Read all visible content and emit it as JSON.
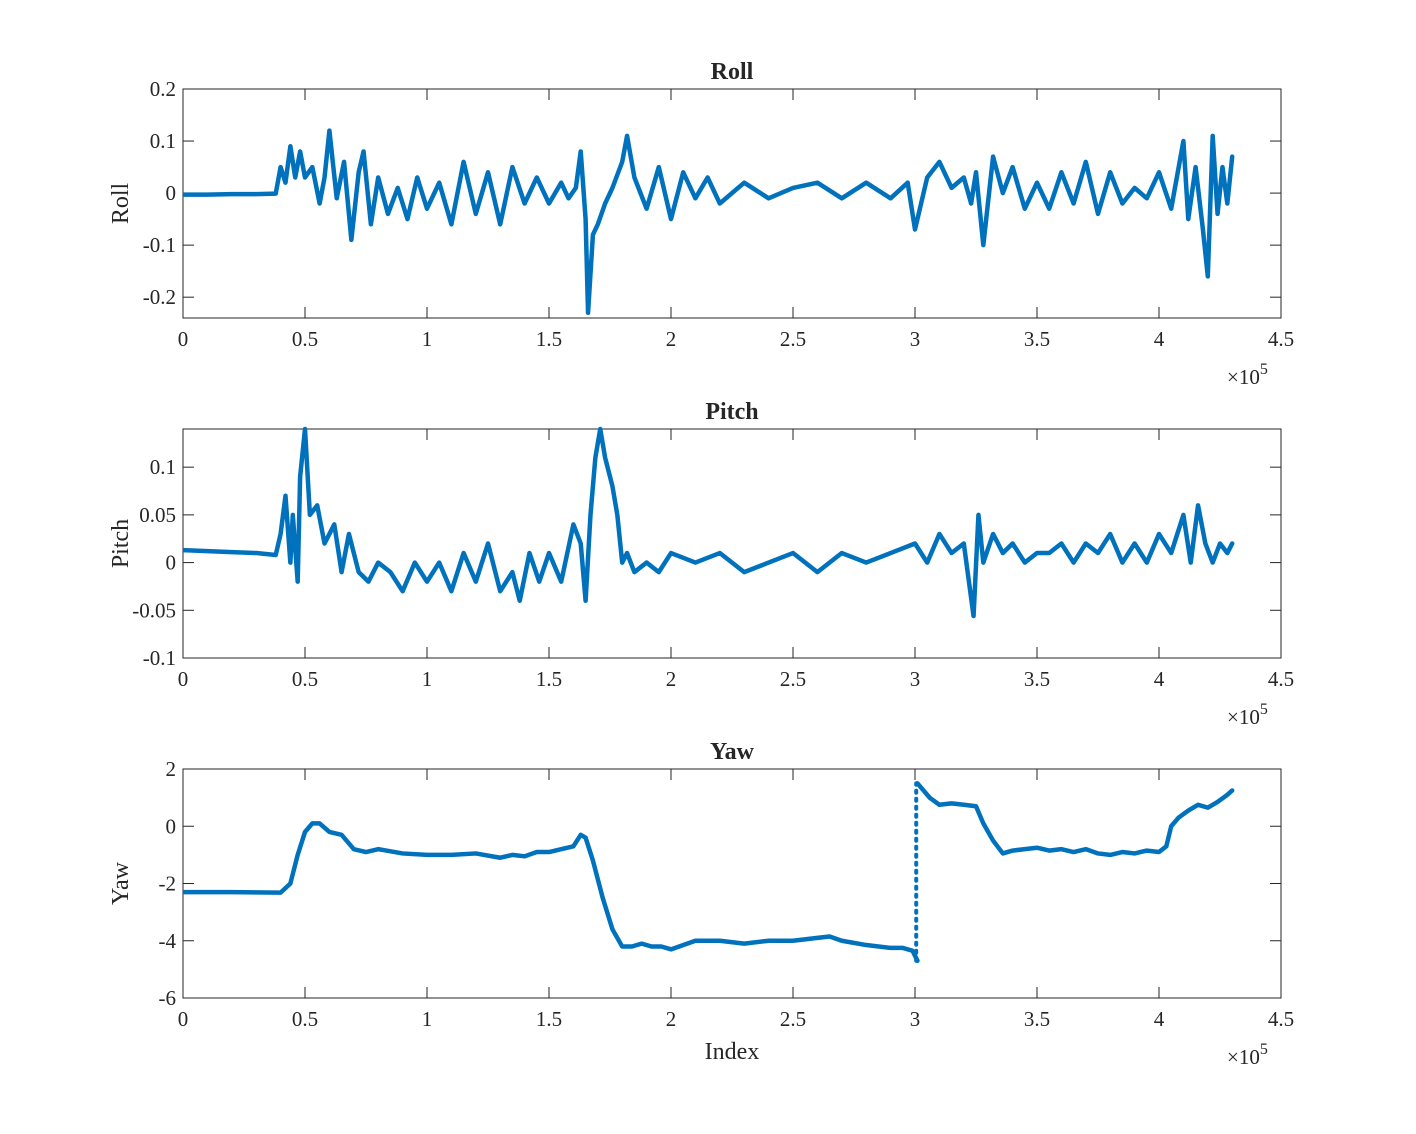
{
  "chart_data": [
    {
      "type": "line",
      "title": "Roll",
      "xlabel": "",
      "ylabel": "Roll",
      "xlim": [
        0,
        450000
      ],
      "ylim": [
        -0.24,
        0.2
      ],
      "x_ticks": [
        0,
        50000,
        100000,
        150000,
        200000,
        250000,
        300000,
        350000,
        400000,
        450000
      ],
      "x_tick_labels": [
        "0",
        "0.5",
        "1",
        "1.5",
        "2",
        "2.5",
        "3",
        "3.5",
        "4",
        "4.5"
      ],
      "x_exponent_label": "×10",
      "x_exponent": "5",
      "y_ticks": [
        -0.2,
        -0.1,
        0,
        0.1,
        0.2
      ],
      "y_tick_labels": [
        "-0.2",
        "-0.1",
        "0",
        "0.1",
        "0.2"
      ],
      "color": "#0072BD",
      "series": [
        {
          "x": [
            0,
            10000,
            20000,
            30000,
            38000,
            40000,
            42000,
            44000,
            46000,
            48000,
            50000,
            53000,
            56000,
            58000,
            60000,
            63000,
            66000,
            69000,
            72000,
            74000,
            77000,
            80000,
            84000,
            88000,
            92000,
            96000,
            100000,
            105000,
            110000,
            115000,
            120000,
            125000,
            130000,
            135000,
            140000,
            145000,
            150000,
            155000,
            158000,
            161000,
            163000,
            165000,
            166000,
            168000,
            170000,
            173000,
            176000,
            180000,
            182000,
            185000,
            190000,
            195000,
            200000,
            205000,
            210000,
            215000,
            220000,
            230000,
            240000,
            250000,
            260000,
            270000,
            280000,
            290000,
            297000,
            300000,
            305000,
            310000,
            315000,
            320000,
            323000,
            325000,
            328000,
            332000,
            336000,
            340000,
            345000,
            350000,
            355000,
            360000,
            365000,
            370000,
            375000,
            380000,
            385000,
            390000,
            395000,
            400000,
            405000,
            410000,
            412000,
            415000,
            418000,
            420000,
            422000,
            424000,
            426000,
            428000,
            430000
          ],
          "y": [
            -0.003,
            -0.003,
            -0.002,
            -0.002,
            -0.001,
            0.05,
            0.02,
            0.09,
            0.03,
            0.08,
            0.03,
            0.05,
            -0.02,
            0.03,
            0.12,
            -0.01,
            0.06,
            -0.09,
            0.04,
            0.08,
            -0.06,
            0.03,
            -0.04,
            0.01,
            -0.05,
            0.03,
            -0.03,
            0.02,
            -0.06,
            0.06,
            -0.04,
            0.04,
            -0.06,
            0.05,
            -0.02,
            0.03,
            -0.02,
            0.02,
            -0.01,
            0.01,
            0.08,
            -0.05,
            -0.23,
            -0.08,
            -0.06,
            -0.02,
            0.01,
            0.06,
            0.11,
            0.03,
            -0.03,
            0.05,
            -0.05,
            0.04,
            -0.01,
            0.03,
            -0.02,
            0.02,
            -0.01,
            0.01,
            0.02,
            -0.01,
            0.02,
            -0.01,
            0.02,
            -0.07,
            0.03,
            0.06,
            0.01,
            0.03,
            -0.02,
            0.04,
            -0.1,
            0.07,
            0.0,
            0.05,
            -0.03,
            0.02,
            -0.03,
            0.04,
            -0.02,
            0.06,
            -0.04,
            0.04,
            -0.02,
            0.01,
            -0.01,
            0.04,
            -0.03,
            0.1,
            -0.05,
            0.05,
            -0.07,
            -0.16,
            0.11,
            -0.04,
            0.05,
            -0.02,
            0.07
          ]
        }
      ]
    },
    {
      "type": "line",
      "title": "Pitch",
      "xlabel": "",
      "ylabel": "Pitch",
      "xlim": [
        0,
        450000
      ],
      "ylim": [
        -0.1,
        0.14
      ],
      "x_ticks": [
        0,
        50000,
        100000,
        150000,
        200000,
        250000,
        300000,
        350000,
        400000,
        450000
      ],
      "x_tick_labels": [
        "0",
        "0.5",
        "1",
        "1.5",
        "2",
        "2.5",
        "3",
        "3.5",
        "4",
        "4.5"
      ],
      "x_exponent_label": "×10",
      "x_exponent": "5",
      "y_ticks": [
        -0.1,
        -0.05,
        0,
        0.05,
        0.1
      ],
      "y_tick_labels": [
        "-0.1",
        "-0.05",
        "0",
        "0.05",
        "0.1"
      ],
      "color": "#0072BD",
      "series": [
        {
          "x": [
            0,
            10000,
            20000,
            30000,
            38000,
            40000,
            42000,
            44000,
            45000,
            47000,
            48000,
            50000,
            52000,
            55000,
            58000,
            62000,
            65000,
            68000,
            72000,
            76000,
            80000,
            85000,
            90000,
            95000,
            100000,
            105000,
            110000,
            115000,
            120000,
            125000,
            130000,
            135000,
            138000,
            142000,
            146000,
            150000,
            155000,
            160000,
            163000,
            165000,
            167000,
            169000,
            171000,
            173000,
            176000,
            178000,
            180000,
            182000,
            185000,
            190000,
            195000,
            200000,
            210000,
            220000,
            230000,
            240000,
            250000,
            260000,
            270000,
            280000,
            290000,
            300000,
            305000,
            310000,
            315000,
            320000,
            324000,
            326000,
            328000,
            332000,
            336000,
            340000,
            345000,
            350000,
            355000,
            360000,
            365000,
            370000,
            375000,
            380000,
            385000,
            390000,
            395000,
            400000,
            405000,
            410000,
            413000,
            416000,
            419000,
            422000,
            425000,
            428000,
            430000
          ],
          "y": [
            0.013,
            0.012,
            0.011,
            0.01,
            0.008,
            0.03,
            0.07,
            0.0,
            0.05,
            -0.02,
            0.09,
            0.14,
            0.05,
            0.06,
            0.02,
            0.04,
            -0.01,
            0.03,
            -0.01,
            -0.02,
            0.0,
            -0.01,
            -0.03,
            0.0,
            -0.02,
            0.0,
            -0.03,
            0.01,
            -0.02,
            0.02,
            -0.03,
            -0.01,
            -0.04,
            0.01,
            -0.02,
            0.01,
            -0.02,
            0.04,
            0.02,
            -0.04,
            0.05,
            0.11,
            0.14,
            0.11,
            0.08,
            0.05,
            0.0,
            0.01,
            -0.01,
            0.0,
            -0.01,
            0.01,
            0.0,
            0.01,
            -0.01,
            0.0,
            0.01,
            -0.01,
            0.01,
            0.0,
            0.01,
            0.02,
            0.0,
            0.03,
            0.01,
            0.02,
            -0.056,
            0.05,
            0.0,
            0.03,
            0.01,
            0.02,
            0.0,
            0.01,
            0.01,
            0.02,
            0.0,
            0.02,
            0.01,
            0.03,
            0.0,
            0.02,
            0.0,
            0.03,
            0.01,
            0.05,
            0.0,
            0.06,
            0.02,
            0.0,
            0.02,
            0.01,
            0.02
          ]
        }
      ]
    },
    {
      "type": "line",
      "title": "Yaw",
      "xlabel": "Index",
      "ylabel": "Yaw",
      "xlim": [
        0,
        450000
      ],
      "ylim": [
        -6,
        2
      ],
      "x_ticks": [
        0,
        50000,
        100000,
        150000,
        200000,
        250000,
        300000,
        350000,
        400000,
        450000
      ],
      "x_tick_labels": [
        "0",
        "0.5",
        "1",
        "1.5",
        "2",
        "2.5",
        "3",
        "3.5",
        "4",
        "4.5"
      ],
      "x_exponent_label": "×10",
      "x_exponent": "5",
      "y_ticks": [
        -6,
        -4,
        -2,
        0,
        2
      ],
      "y_tick_labels": [
        "-6",
        "-4",
        "-2",
        "0",
        "2"
      ],
      "color": "#0072BD",
      "series": [
        {
          "x": [
            0,
            20000,
            40000,
            44000,
            47000,
            50000,
            53000,
            56000,
            60000,
            65000,
            70000,
            75000,
            80000,
            90000,
            100000,
            110000,
            120000,
            130000,
            135000,
            140000,
            145000,
            150000,
            155000,
            160000,
            163000,
            165000,
            168000,
            172000,
            176000,
            180000,
            184000,
            188000,
            192000,
            196000,
            200000,
            210000,
            220000,
            230000,
            240000,
            250000,
            260000,
            265000,
            270000,
            280000,
            290000,
            295000,
            299000,
            301000
          ],
          "y": [
            -2.3,
            -2.3,
            -2.32,
            -2.0,
            -1.0,
            -0.2,
            0.1,
            0.1,
            -0.2,
            -0.3,
            -0.8,
            -0.9,
            -0.8,
            -0.95,
            -1.0,
            -1.0,
            -0.95,
            -1.1,
            -1.0,
            -1.05,
            -0.9,
            -0.9,
            -0.8,
            -0.7,
            -0.3,
            -0.4,
            -1.2,
            -2.5,
            -3.6,
            -4.2,
            -4.2,
            -4.1,
            -4.2,
            -4.2,
            -4.3,
            -4.0,
            -4.0,
            -4.1,
            -4.0,
            -4.0,
            -3.9,
            -3.85,
            -4.0,
            -4.15,
            -4.25,
            -4.25,
            -4.35,
            -4.7
          ]
        },
        {
          "x": [
            301000,
            303000,
            306000,
            310000,
            315000,
            320000,
            325000,
            328000,
            332000,
            336000,
            340000,
            345000,
            350000,
            355000,
            360000,
            365000,
            370000,
            375000,
            380000,
            385000,
            390000,
            395000,
            400000,
            403000,
            405000,
            408000,
            412000,
            416000,
            420000,
            424000,
            428000,
            430000
          ],
          "y": [
            1.5,
            1.3,
            1.0,
            0.75,
            0.8,
            0.75,
            0.7,
            0.1,
            -0.5,
            -0.95,
            -0.85,
            -0.8,
            -0.75,
            -0.85,
            -0.8,
            -0.9,
            -0.8,
            -0.95,
            -1.0,
            -0.9,
            -0.95,
            -0.85,
            -0.9,
            -0.7,
            0.0,
            0.3,
            0.55,
            0.75,
            0.65,
            0.85,
            1.1,
            1.25
          ]
        }
      ],
      "jump": {
        "x": 300500,
        "from": -4.7,
        "to": 1.5,
        "style": "dotted"
      }
    }
  ]
}
